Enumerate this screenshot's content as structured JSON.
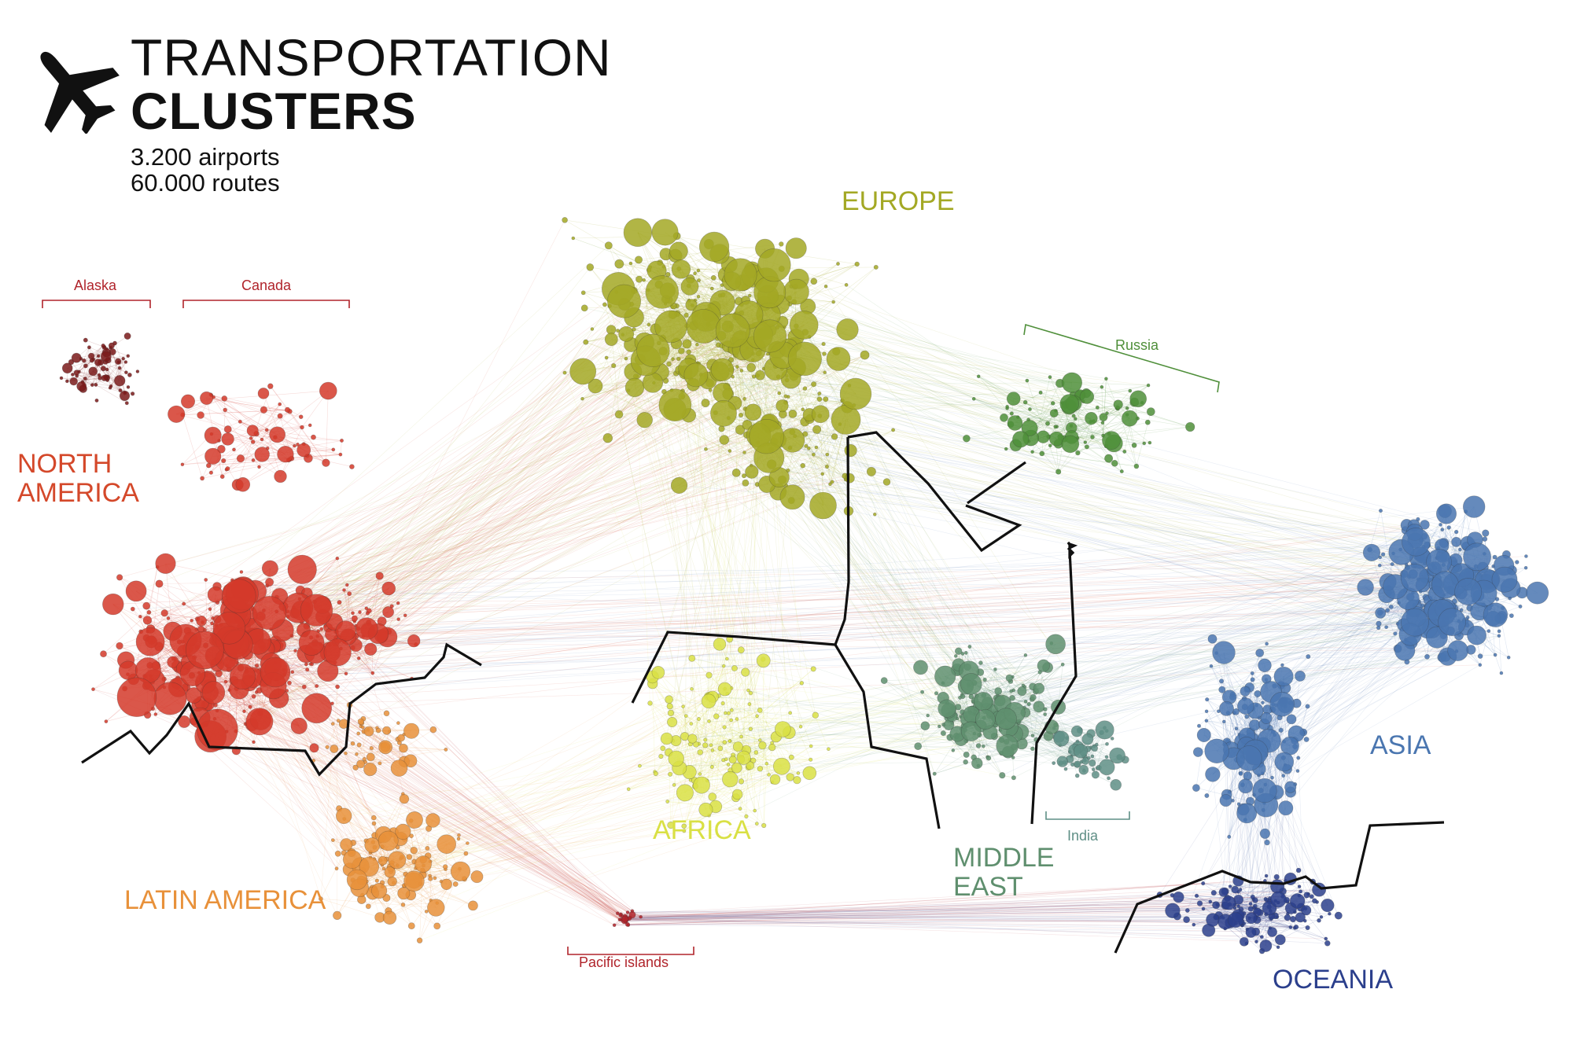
{
  "header": {
    "title_line1": "TRANSPORTATION",
    "title_line2": "CLUSTERS",
    "stat_airports": "3.200 airports",
    "stat_routes": "60.000 routes",
    "icon": "airplane-icon"
  },
  "regions": {
    "north_america": [
      "NORTH",
      "AMERICA"
    ],
    "europe": "EUROPE",
    "latin_america": "LATIN AMERICA",
    "africa": "AFRICA",
    "middle_east": [
      "MIDDLE",
      "EAST"
    ],
    "asia": "ASIA",
    "oceania": "OCEANIA"
  },
  "subregions": {
    "alaska": "Alaska",
    "canada": "Canada",
    "russia": "Russia",
    "india": "India",
    "pacific_islands": "Pacific islands"
  },
  "colors": {
    "north_america": "#d43a2a",
    "latin_america": "#e8913a",
    "europe": "#a3a824",
    "africa": "#d9e044",
    "middle_east": "#5f8f6e",
    "asia": "#4a76b0",
    "oceania": "#2b3f8c",
    "alaska": "#7a1a1a",
    "russia": "#4f8f3a",
    "india": "#5f8f86",
    "pacific": "#b0242b",
    "boundary": "#111111"
  }
}
